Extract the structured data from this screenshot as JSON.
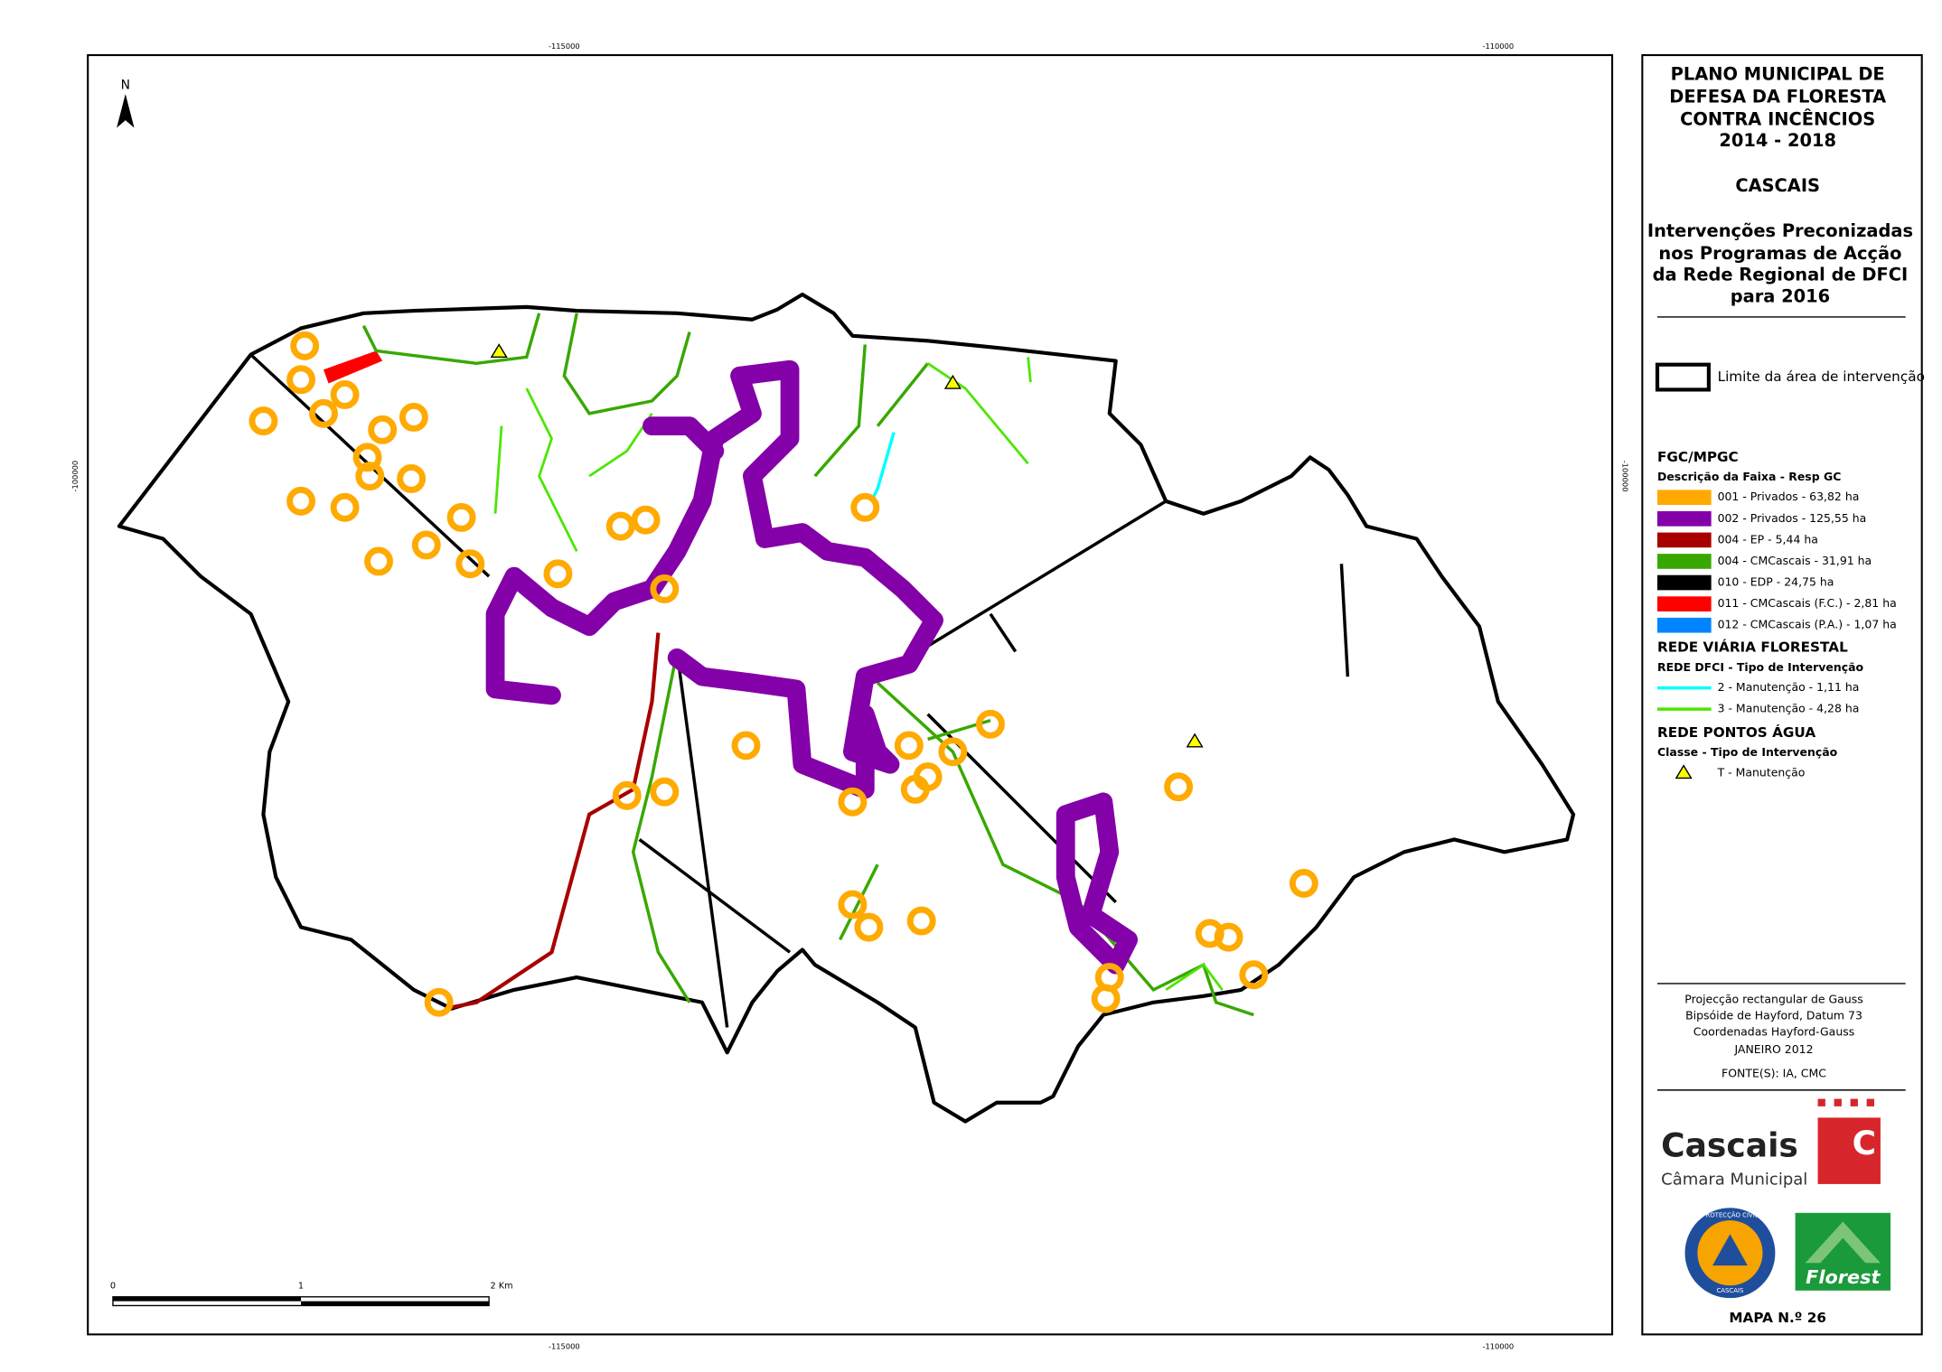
{
  "map": {
    "north": "N",
    "coords": {
      "top": [
        "-115000",
        "-110000"
      ],
      "bottom": [
        "-115000",
        "-110000"
      ],
      "left": [
        "-100000"
      ],
      "right": [
        "-100000"
      ]
    },
    "scale": [
      "0",
      "1",
      "2 Km"
    ]
  },
  "panel": {
    "title": [
      "PLANO MUNICIPAL DE",
      "DEFESA DA FLORESTA",
      "CONTRA INCÊNCIOS",
      "2014 - 2018"
    ],
    "place": "CASCAIS",
    "subtitle": [
      "Intervenções Preconizadas",
      "nos Programas de Acção",
      "da Rede Regional de DFCI",
      "para 2016"
    ],
    "boundary": "Limite da área de intervenção",
    "legend": {
      "fgc": {
        "title": "FGC/MPGC",
        "subtitle": "Descrição da Faixa - Resp GC",
        "items": [
          {
            "label": "001 - Privados - 63,82 ha",
            "color": "#ffaa00"
          },
          {
            "label": "002 - Privados - 125,55 ha",
            "color": "#8400a8"
          },
          {
            "label": "004 - EP - 5,44 ha",
            "color": "#a80000"
          },
          {
            "label": "004 - CMCascais - 31,91 ha",
            "color": "#38a800"
          },
          {
            "label": "010 - EDP - 24,75 ha",
            "color": "#000000"
          },
          {
            "label": "011 - CMCascais (F.C.) - 2,81 ha",
            "color": "#ff0000"
          },
          {
            "label": "012 - CMCascais (P.A.) - 1,07 ha",
            "color": "#0084ff"
          }
        ]
      },
      "roads": {
        "title": "REDE VIÁRIA FLORESTAL",
        "subtitle": "REDE DFCI - Tipo de Intervenção",
        "items": [
          {
            "label": "2 - Manutenção - 1,11 ha",
            "color": "#00ffff"
          },
          {
            "label": "3 - Manutenção - 4,28 ha",
            "color": "#4ce600"
          }
        ]
      },
      "water": {
        "title": "REDE PONTOS ÁGUA",
        "subtitle": "Classe - Tipo de Intervenção",
        "items": [
          {
            "label": "T - Manutenção"
          }
        ]
      }
    },
    "projection": [
      "Projecção rectangular de Gauss",
      "Bipsóide de Hayford, Datum 73",
      "Coordenadas Hayford-Gauss",
      "JANEIRO 2012"
    ],
    "source": "FONTE(S): IA, CMC",
    "logos": {
      "cascais": "Cascais",
      "camara": "Câmara Municipal",
      "c": "C",
      "civil": "PROTECÇÃO CIVIL",
      "civil_place": "CASCAIS",
      "florest": "Florest"
    },
    "map_number": "MAPA N.º 26"
  }
}
